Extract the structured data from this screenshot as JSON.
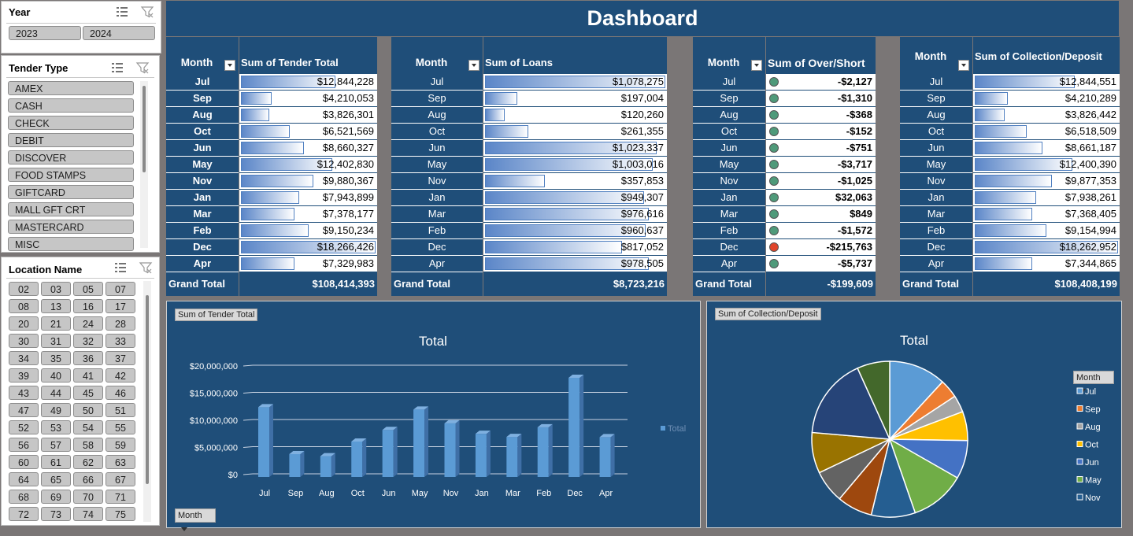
{
  "dashboard": {
    "title": "Dashboard"
  },
  "slicers": {
    "year": {
      "title": "Year",
      "items": [
        "2023",
        "2024"
      ]
    },
    "tender": {
      "title": "Tender Type",
      "items": [
        "AMEX",
        "CASH",
        "CHECK",
        "DEBIT",
        "DISCOVER",
        "FOOD STAMPS",
        "GIFTCARD",
        "MALL GFT CRT",
        "MASTERCARD",
        "MISC"
      ]
    },
    "location": {
      "title": "Location Name",
      "items": [
        "02",
        "03",
        "05",
        "07",
        "08",
        "13",
        "16",
        "17",
        "20",
        "21",
        "24",
        "28",
        "30",
        "31",
        "32",
        "33",
        "34",
        "35",
        "36",
        "37",
        "39",
        "40",
        "41",
        "42",
        "43",
        "44",
        "45",
        "46",
        "47",
        "49",
        "50",
        "51",
        "52",
        "53",
        "54",
        "55",
        "56",
        "57",
        "58",
        "59",
        "60",
        "61",
        "62",
        "63",
        "64",
        "65",
        "66",
        "67",
        "68",
        "69",
        "70",
        "71",
        "72",
        "73",
        "74",
        "75"
      ]
    }
  },
  "months": [
    "Jul",
    "Sep",
    "Aug",
    "Oct",
    "Jun",
    "May",
    "Nov",
    "Jan",
    "Mar",
    "Feb",
    "Dec",
    "Apr"
  ],
  "grand_total_label": "Grand Total",
  "tables": {
    "tender": {
      "month_header": "Month",
      "value_header": "Sum of Tender Total",
      "values": [
        "$12,844,228",
        "$4,210,053",
        "$3,826,301",
        "$6,521,569",
        "$8,660,327",
        "$12,402,830",
        "$9,880,367",
        "$7,943,899",
        "$7,378,177",
        "$9,150,234",
        "$18,266,426",
        "$7,329,983"
      ],
      "bar_fraction": [
        0.7,
        0.23,
        0.21,
        0.36,
        0.47,
        0.68,
        0.54,
        0.43,
        0.4,
        0.5,
        1.0,
        0.4
      ],
      "total": "$108,414,393"
    },
    "loans": {
      "month_header": "Month",
      "value_header": "Sum of Loans",
      "values": [
        "$1,078,275",
        "$197,004",
        "$120,260",
        "$261,355",
        "$1,023,337",
        "$1,003,016",
        "$357,853",
        "$949,307",
        "$976,616",
        "$960,637",
        "$817,052",
        "$978,505"
      ],
      "bar_fraction": [
        1.0,
        0.18,
        0.11,
        0.24,
        0.95,
        0.93,
        0.33,
        0.88,
        0.91,
        0.89,
        0.76,
        0.91
      ],
      "total": "$8,723,216"
    },
    "overshort": {
      "month_header": "Month",
      "value_header": "Sum of Over/Short",
      "values": [
        "-$2,127",
        "-$1,310",
        "-$368",
        "-$152",
        "-$751",
        "-$3,717",
        "-$1,025",
        "$32,063",
        "$849",
        "-$1,572",
        "-$215,763",
        "-$5,737"
      ],
      "status": [
        "ok",
        "ok",
        "ok",
        "ok",
        "ok",
        "ok",
        "ok",
        "ok",
        "ok",
        "ok",
        "bad",
        "ok"
      ],
      "total": "-$199,609"
    },
    "collection": {
      "month_header": "Month",
      "value_header": "Sum of Collection/Deposit",
      "values": [
        "$12,844,551",
        "$4,210,289",
        "$3,826,442",
        "$6,518,509",
        "$8,661,187",
        "$12,400,390",
        "$9,877,353",
        "$7,938,261",
        "$7,368,405",
        "$9,154,994",
        "$18,262,952",
        "$7,344,865"
      ],
      "bar_fraction": [
        0.7,
        0.23,
        0.21,
        0.36,
        0.47,
        0.68,
        0.54,
        0.43,
        0.4,
        0.5,
        1.0,
        0.4
      ],
      "total": "$108,408,199"
    }
  },
  "charts": {
    "bar": {
      "field_button": "Sum of Tender Total",
      "axis_button": "Month",
      "legend": "Total"
    },
    "pie": {
      "field_button": "Sum of Collection/Deposit",
      "legend_button": "Month"
    }
  },
  "chart_data": [
    {
      "type": "bar",
      "title": "Total",
      "categories": [
        "Jul",
        "Sep",
        "Aug",
        "Oct",
        "Jun",
        "May",
        "Nov",
        "Jan",
        "Mar",
        "Feb",
        "Dec",
        "Apr"
      ],
      "values": [
        12844228,
        4210053,
        3826301,
        6521569,
        8660327,
        12402830,
        9880367,
        7943899,
        7378177,
        9150234,
        18266426,
        7329983
      ],
      "ylim": [
        0,
        20000000
      ],
      "ytick_labels": [
        "$0",
        "$5,000,000",
        "$10,000,000",
        "$15,000,000",
        "$20,000,000"
      ],
      "legend": [
        "Total"
      ],
      "color": "#5b9bd5"
    },
    {
      "type": "pie",
      "title": "Total",
      "categories": [
        "Jul",
        "Sep",
        "Aug",
        "Oct",
        "Jun",
        "May",
        "Nov",
        "Jan",
        "Mar",
        "Feb",
        "Dec",
        "Apr"
      ],
      "values": [
        12844551,
        4210289,
        3826442,
        6518509,
        8661187,
        12400390,
        9877353,
        7938261,
        7368405,
        9154994,
        18262952,
        7344865
      ],
      "colors": [
        "#5b9bd5",
        "#ed7d31",
        "#a5a5a5",
        "#ffc000",
        "#4472c4",
        "#70ad47",
        "#255e91",
        "#9e480e",
        "#636363",
        "#997300",
        "#264478",
        "#43682b"
      ],
      "legend_visible": [
        "Jul",
        "Sep",
        "Aug",
        "Oct",
        "Jun",
        "May",
        "Nov"
      ]
    }
  ]
}
